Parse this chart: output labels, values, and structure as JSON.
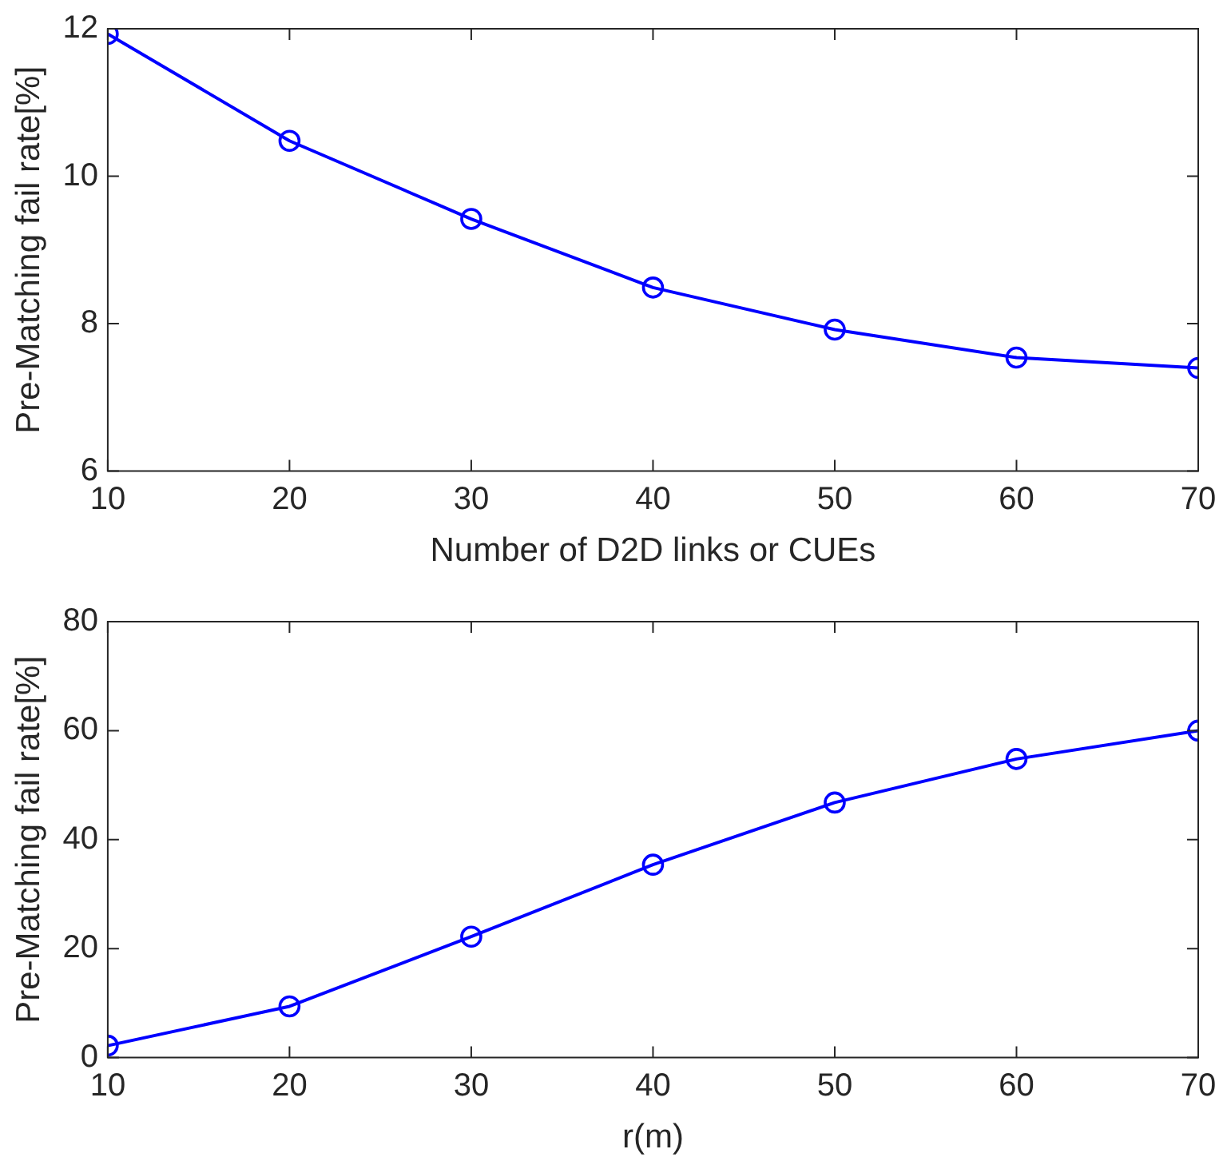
{
  "chart_data": [
    {
      "type": "line",
      "xlabel": "Number of D2D links or CUEs",
      "ylabel": "Pre-Matching fail rate[%]",
      "x": [
        10,
        20,
        30,
        40,
        50,
        60,
        70
      ],
      "series": [
        {
          "color": "#0000ff",
          "values": [
            11.93,
            10.48,
            9.42,
            8.49,
            7.92,
            7.54,
            7.4
          ]
        }
      ],
      "xlim": [
        10,
        70
      ],
      "xticks": [
        10,
        20,
        30,
        40,
        50,
        60,
        70
      ],
      "ylim": [
        6,
        12
      ],
      "yticks": [
        6,
        8,
        10,
        12
      ],
      "marker": "circle",
      "line_style": "solid",
      "grid": false,
      "legend": false
    },
    {
      "type": "line",
      "xlabel": "r(m)",
      "ylabel": "Pre-Matching fail rate[%]",
      "x": [
        10,
        20,
        30,
        40,
        50,
        60,
        70
      ],
      "series": [
        {
          "color": "#0000ff",
          "values": [
            2.2,
            9.4,
            22.2,
            35.4,
            46.8,
            54.8,
            60
          ]
        }
      ],
      "xlim": [
        10,
        70
      ],
      "xticks": [
        10,
        20,
        30,
        40,
        50,
        60,
        70
      ],
      "ylim": [
        0,
        80
      ],
      "yticks": [
        0,
        20,
        40,
        60,
        80
      ],
      "marker": "circle",
      "line_style": "solid",
      "grid": false,
      "legend": false
    }
  ]
}
